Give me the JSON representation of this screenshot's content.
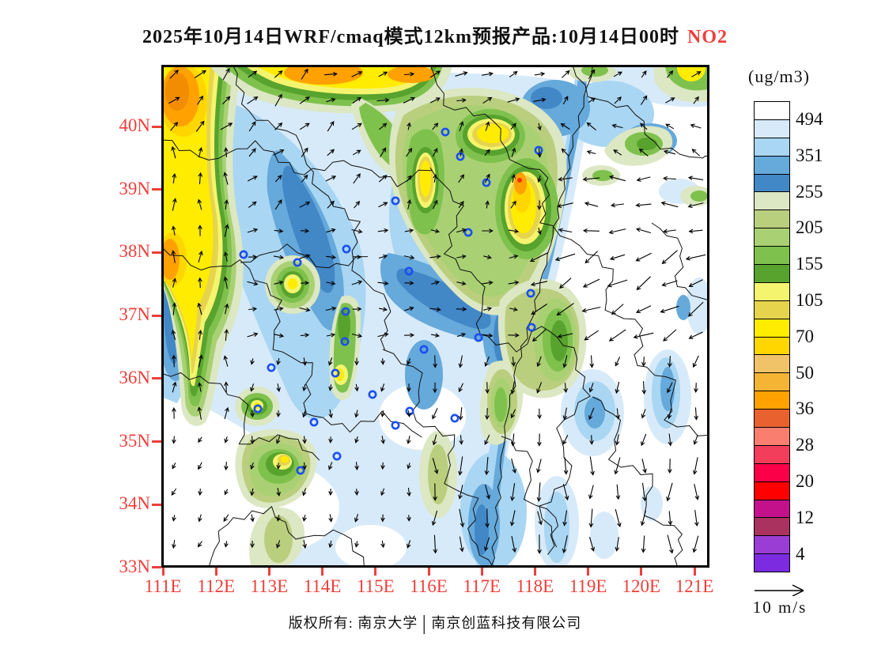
{
  "title": {
    "text": "2025年10月14日WRF/cmaq模式12km预报产品:10月14日00时",
    "species": "NO2"
  },
  "colorbar": {
    "unit": "(ug/m3)",
    "labels": [
      "494",
      "351",
      "255",
      "205",
      "155",
      "105",
      "70",
      "50",
      "36",
      "28",
      "20",
      "12",
      "4"
    ],
    "colors": [
      "#7c2be0",
      "#9a3dd4",
      "#a9325e",
      "#c3118c",
      "#ff0000",
      "#fb0049",
      "#f23d5b",
      "#f97e70",
      "#e9612f",
      "#ffa101",
      "#f6b435",
      "#f1c368",
      "#ffd600",
      "#ffec00",
      "#e7d44d",
      "#f4f46e",
      "#57a32e",
      "#7fc14d",
      "#a9d173",
      "#bacf7e",
      "#dce7c3",
      "#4287c6",
      "#66a9db",
      "#a9d6f2",
      "#d7eaf9",
      "#ffffff"
    ]
  },
  "axes": {
    "lat_labels": [
      "40N",
      "39N",
      "38N",
      "37N",
      "36N",
      "35N",
      "34N",
      "33N"
    ],
    "lon_labels": [
      "111E",
      "112E",
      "113E",
      "114E",
      "115E",
      "116E",
      "117E",
      "118E",
      "119E",
      "120E",
      "121E"
    ],
    "tick_color": "#ee3f3a"
  },
  "wind_legend": {
    "label": "10 m/s"
  },
  "footer": {
    "left": "版权所有: 南京大学",
    "separator": "|",
    "right": "南京创蓝科技有限公司"
  },
  "map": {
    "marker_color": "#1b4ff2",
    "arrow_color": "#000000",
    "markers": [
      [
        104,
        240
      ],
      [
        296,
        172
      ],
      [
        234,
        233
      ],
      [
        172,
        250
      ],
      [
        313,
        261
      ],
      [
        359,
        85
      ],
      [
        378,
        116
      ],
      [
        411,
        149
      ],
      [
        477,
        108
      ],
      [
        388,
        212
      ],
      [
        467,
        289
      ],
      [
        401,
        345
      ],
      [
        468,
        332
      ],
      [
        371,
        447
      ],
      [
        233,
        312
      ],
      [
        232,
        350
      ],
      [
        139,
        383
      ],
      [
        122,
        435
      ],
      [
        220,
        390
      ],
      [
        267,
        417
      ],
      [
        193,
        452
      ],
      [
        296,
        456
      ],
      [
        332,
        360
      ],
      [
        222,
        495
      ],
      [
        176,
        513
      ],
      [
        314,
        438
      ]
    ],
    "wind": {
      "step": 33,
      "default": {
        "dir": 90,
        "len": 10
      },
      "regions": [
        {
          "x": [
            0,
            210
          ],
          "y": [
            0,
            95
          ],
          "dir": 315,
          "len": 15
        },
        {
          "x": [
            210,
            480
          ],
          "y": [
            0,
            70
          ],
          "dir": 340,
          "len": 14
        },
        {
          "x": [
            480,
            693
          ],
          "y": [
            0,
            70
          ],
          "dir": 315,
          "len": 12
        },
        {
          "x": [
            0,
            115
          ],
          "y": [
            95,
            460
          ],
          "dir": 270,
          "len": 14
        },
        {
          "x": [
            480,
            693
          ],
          "y": [
            70,
            140
          ],
          "dir": 210,
          "len": 13
        },
        {
          "x": [
            500,
            693
          ],
          "y": [
            140,
            235
          ],
          "dir": 180,
          "len": 19
        },
        {
          "x": [
            465,
            693
          ],
          "y": [
            235,
            350
          ],
          "dir": 152,
          "len": 23
        },
        {
          "x": [
            115,
            300
          ],
          "y": [
            70,
            200
          ],
          "dir": 318,
          "len": 13
        },
        {
          "x": [
            300,
            465
          ],
          "y": [
            70,
            200
          ],
          "dir": 295,
          "len": 11
        },
        {
          "x": [
            115,
            465
          ],
          "y": [
            200,
            350
          ],
          "dir": 358,
          "len": 12
        },
        {
          "x": [
            340,
            693
          ],
          "y": [
            350,
            480
          ],
          "dir": 100,
          "len": 14
        },
        {
          "x": [
            340,
            693
          ],
          "y": [
            480,
            636
          ],
          "dir": 90,
          "len": 21
        },
        {
          "x": [
            115,
            340
          ],
          "y": [
            350,
            636
          ],
          "dir": 95,
          "len": 9
        },
        {
          "x": [
            0,
            115
          ],
          "y": [
            460,
            636
          ],
          "dir": 110,
          "len": 9
        }
      ]
    }
  }
}
